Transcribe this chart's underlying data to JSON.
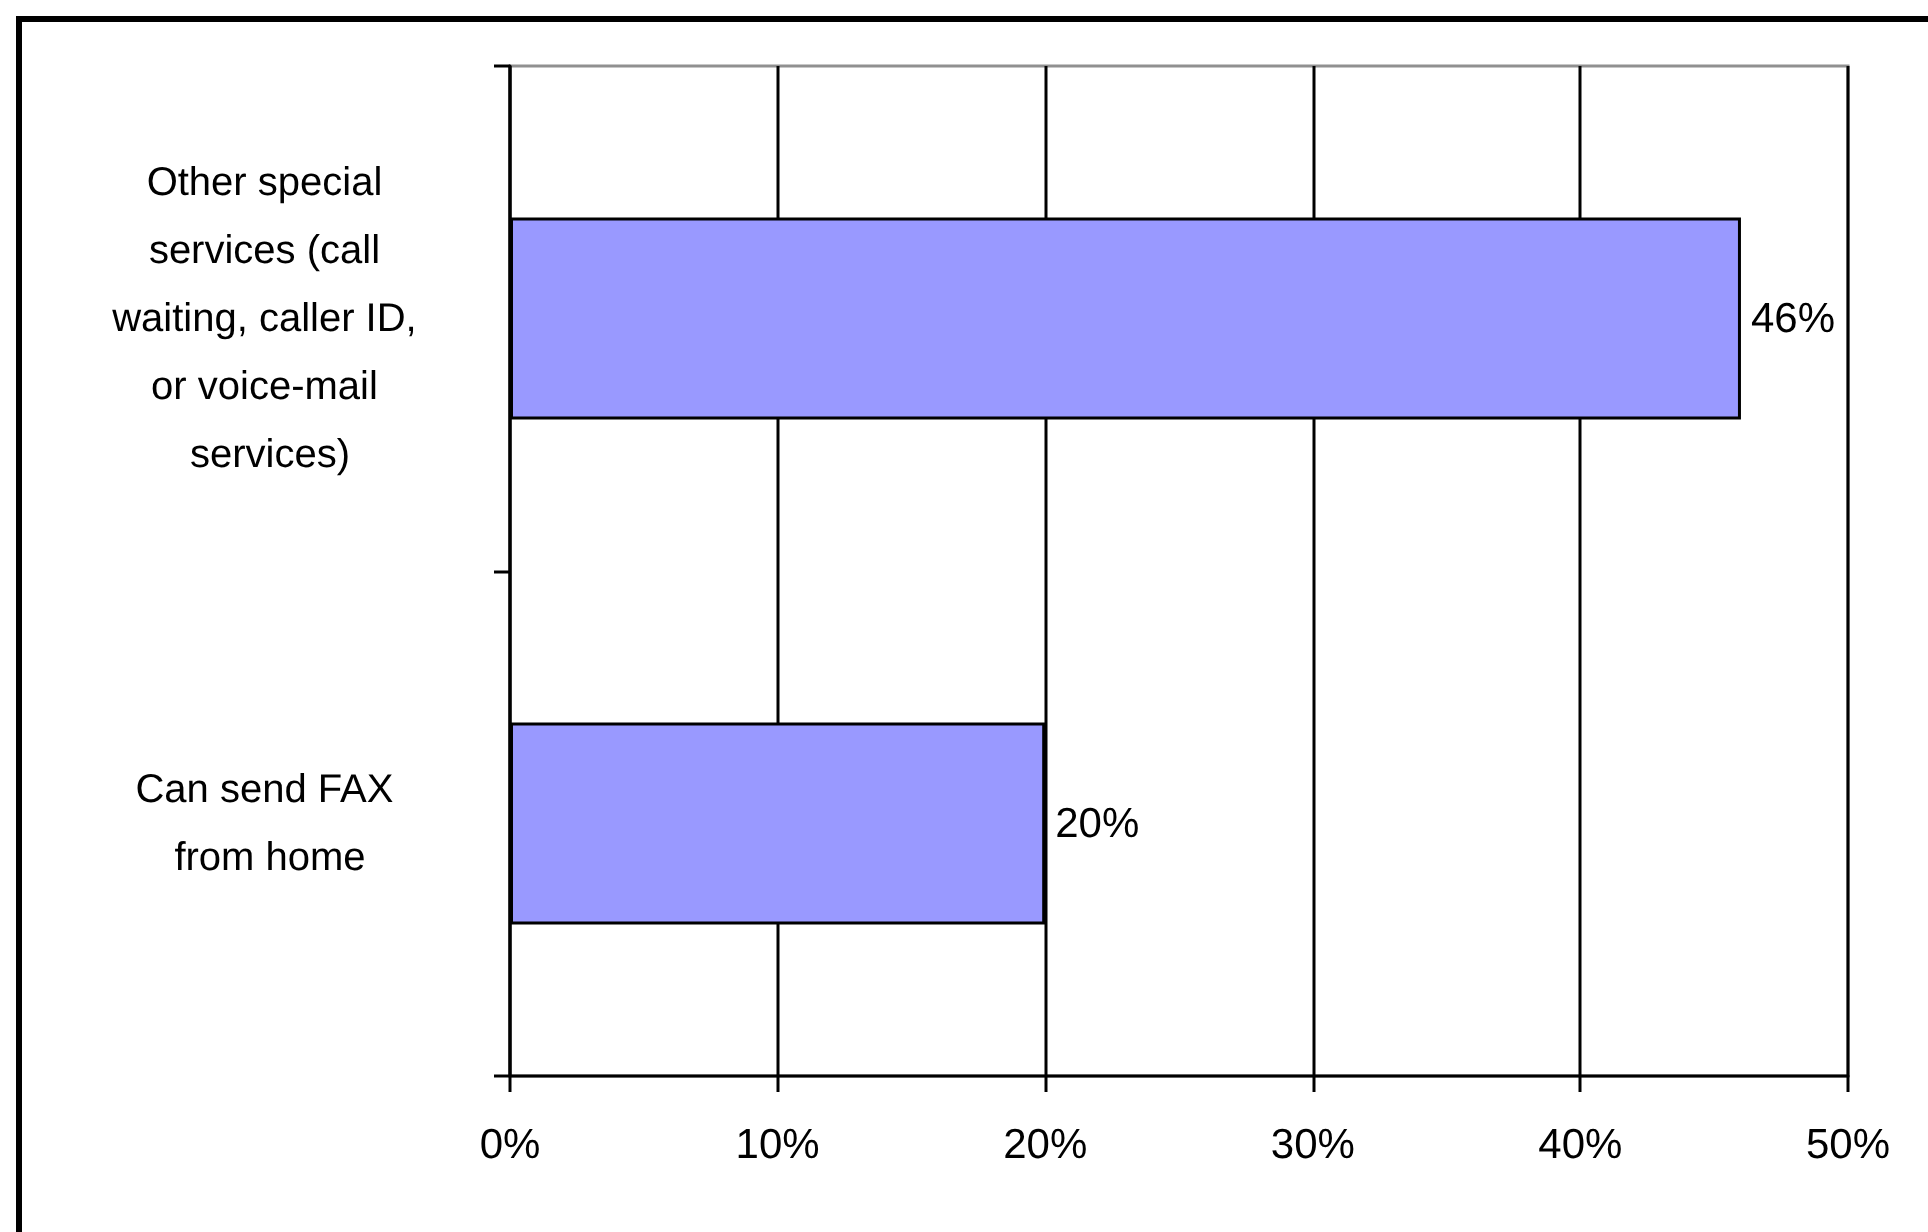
{
  "chart_data": {
    "type": "bar",
    "orientation": "horizontal",
    "categories": [
      "Other special services (call waiting, caller ID, or voice-mail services)",
      "Can send FAX from home"
    ],
    "values": [
      46,
      20
    ],
    "color": "#9999ff",
    "value_labels": [
      "46%",
      "20%"
    ],
    "xlim": [
      0,
      50
    ],
    "xticks": [
      {
        "value": 0,
        "label": "0%"
      },
      {
        "value": 10,
        "label": "10%"
      },
      {
        "value": 20,
        "label": "20%"
      },
      {
        "value": 30,
        "label": "30%"
      },
      {
        "value": 40,
        "label": "40%"
      },
      {
        "value": 50,
        "label": "50%"
      }
    ],
    "grid": "x"
  }
}
